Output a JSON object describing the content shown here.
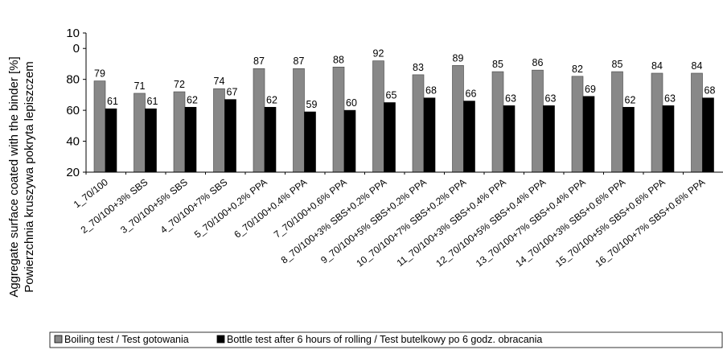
{
  "chart_data": {
    "type": "bar",
    "ylabel_lines": [
      "Aggregate surface coated with the binder [%]",
      "Powierzchnia kruszywa pokryta lepiszczem"
    ],
    "xlabel": "",
    "ytick_labels": [
      "20",
      "40",
      "60",
      "80",
      "0",
      "10"
    ],
    "ylim": [
      20,
      110
    ],
    "grid": false,
    "legend_position": "bottom",
    "categories": [
      "1_70/100",
      "2_70/100+3% SBS",
      "3_70/100+5% SBS",
      "4_70/100+7% SBS",
      "5_70/100+0.2% PPA",
      "6_70/100+0.4% PPA",
      "7_70/100+0.6% PPA",
      "8_70/100+3% SBS+0.2% PPA",
      "9_70/100+5% SBS+0.2% PPA",
      "10_70/100+7% SBS+0.2% PPA",
      "11_70/100+3% SBS+0.4% PPA",
      "12_70/100+5% SBS+0.4% PPA",
      "13_70/100+7% SBS+0.4% PPA",
      "14_70/100+3% SBS+0.6% PPA",
      "15_70/100+5% SBS+0.6% PPA",
      "16_70/100+7% SBS+0.6% PPA"
    ],
    "series": [
      {
        "name": "Boiling test / Test gotowania",
        "color": "#888888",
        "values": [
          79,
          71,
          72,
          74,
          87,
          87,
          88,
          92,
          83,
          89,
          85,
          86,
          82,
          85,
          84,
          84
        ]
      },
      {
        "name": "Bottle test after 6 hours of rolling / Test butelkowy po 6 godz. obracania",
        "color": "#000000",
        "values": [
          61,
          61,
          62,
          67,
          62,
          59,
          60,
          65,
          68,
          66,
          63,
          63,
          69,
          62,
          63,
          68
        ]
      }
    ]
  }
}
